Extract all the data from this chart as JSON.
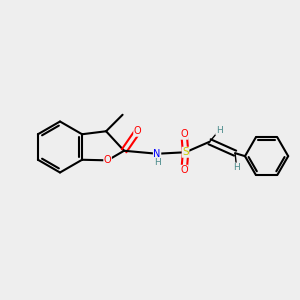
{
  "background_color": "#eeeeee",
  "bond_color": "#000000",
  "bond_width": 1.5,
  "atom_colors": {
    "O": "#ff0000",
    "N": "#0000ff",
    "S": "#cccc00",
    "H": "#4a8a8a",
    "C": "#000000"
  }
}
